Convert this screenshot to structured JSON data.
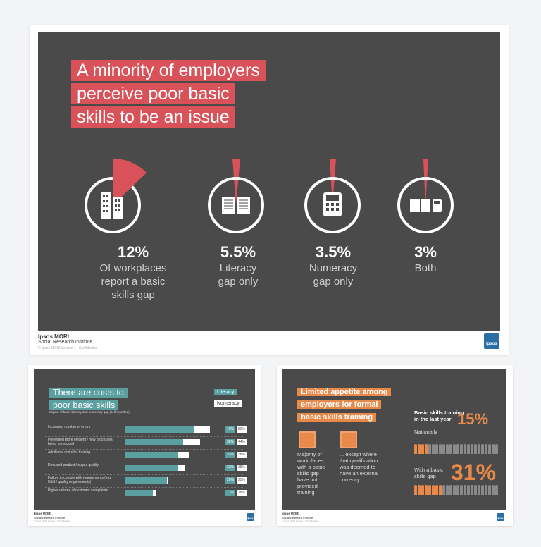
{
  "main_slide": {
    "title_lines": [
      "A minority of employers",
      "perceive poor basic",
      "skills to be an issue"
    ],
    "stats": [
      {
        "value": "12%",
        "caption_lines": [
          "Of workplaces",
          "report a basic",
          "skills gap"
        ],
        "icon": "buildings-icon",
        "fraction": 0.12
      },
      {
        "value": "5.5%",
        "caption_lines": [
          "Literacy",
          "gap only"
        ],
        "icon": "book-icon",
        "fraction": 0.055
      },
      {
        "value": "3.5%",
        "caption_lines": [
          "Numeracy",
          "gap only"
        ],
        "icon": "calculator-icon",
        "fraction": 0.035
      },
      {
        "value": "3%",
        "caption_lines": [
          "Both"
        ],
        "icon": "book-calculator-icon",
        "fraction": 0.03
      }
    ],
    "footer": {
      "brand": "Ipsos MORI",
      "sub": "Social Research Institute",
      "small": "© Ipsos MORI    Version 1 | Confidential",
      "logo": "Ipsos"
    }
  },
  "costs_slide": {
    "title_lines": [
      "There are costs to",
      "poor basic skills"
    ],
    "subtitle": "Impact of basic literacy and numeracy gap (self-reported)",
    "legend": [
      "Literacy",
      "Numeracy"
    ],
    "rows": [
      {
        "label": "Increased number of errors",
        "literacy": "43%",
        "numeracy": "50%"
      },
      {
        "label": "Prevented more efficient / new processes being introduced",
        "literacy": "36%",
        "numeracy": "44%"
      },
      {
        "label": "Additional costs for training",
        "literacy": "33%",
        "numeracy": "38%"
      },
      {
        "label": "Reduced product / output quality",
        "literacy": "33%",
        "numeracy": "35%"
      },
      {
        "label": "Failure to comply with requirements (e.g. H&S / quality requirements)",
        "literacy": "26%",
        "numeracy": "25%"
      },
      {
        "label": "Higher volume of customer complaints",
        "literacy": "17%",
        "numeracy": "18%"
      }
    ],
    "footer": {
      "brand": "Ipsos MORI",
      "sub": "Social Research Institute",
      "small": "© Ipsos MORI    Version 1 | Confidential",
      "logo": "Ipsos"
    }
  },
  "training_slide": {
    "title_lines": [
      "Limited appetite among",
      "employers for formal",
      "basic skills training"
    ],
    "left_text": [
      "Majority of",
      "workplaces",
      "with a basic",
      "skills gap",
      "have not",
      "provided",
      "training"
    ],
    "right_text": [
      "... except where",
      "that qualification",
      "was deemed to",
      "have an external",
      "currency"
    ],
    "stat_heading": [
      "Basic skills training",
      "in the last year"
    ],
    "national_label": "Nationally",
    "national_value": "15%",
    "gap_label": [
      "With a basic",
      "skills gap"
    ],
    "gap_value": "31%",
    "footer": {
      "brand": "Ipsos MORI",
      "sub": "Social Research Institute",
      "small": "© Ipsos MORI    Version 1 | Confidential",
      "logo": "Ipsos"
    }
  },
  "colors": {
    "accent_red": "#d9525a",
    "teal": "#5aa0a0",
    "orange": "#e8894a",
    "slide_bg": "#4a4a4a"
  }
}
